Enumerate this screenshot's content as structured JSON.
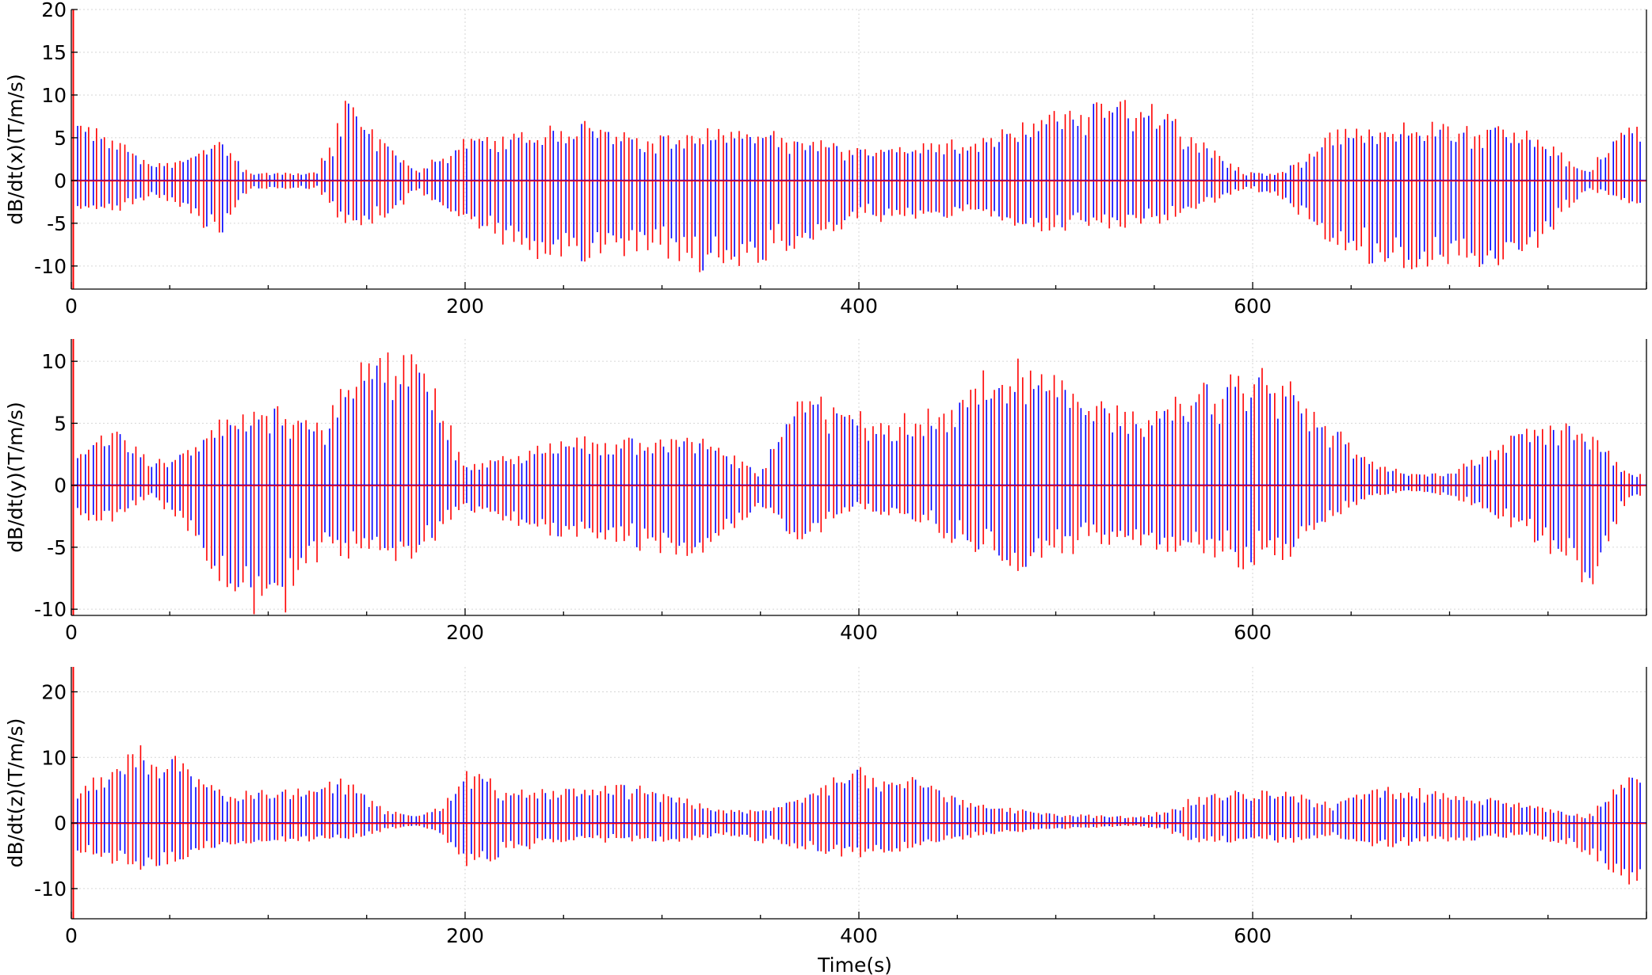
{
  "chart_data": [
    {
      "type": "line",
      "ylabel": "dB/dt(x)(T/m/s)",
      "xlabel": "",
      "xlim": [
        0,
        800
      ],
      "ylim": [
        -12.7,
        20
      ],
      "xticks": [
        0,
        200,
        400,
        600
      ],
      "yticks": [
        -10,
        -5,
        0,
        5,
        10,
        15,
        20
      ],
      "grid": true,
      "colors": {
        "series_a": "#0000ff",
        "series_b": "#ff0000"
      },
      "envelope_keypoints": {
        "x": [
          5,
          20,
          40,
          60,
          75,
          90,
          110,
          125,
          140,
          160,
          175,
          200,
          230,
          260,
          290,
          320,
          350,
          370,
          400,
          430,
          460,
          490,
          520,
          545,
          570,
          595,
          615,
          640,
          680,
          700,
          740,
          770,
          790
        ],
        "positive": [
          7,
          6,
          2,
          3,
          5,
          1,
          1,
          1,
          9.5,
          5,
          1,
          5,
          6,
          7,
          5,
          6.5,
          6,
          5.5,
          4,
          4.5,
          5,
          7.5,
          9.5,
          9.5,
          6,
          1,
          1,
          6,
          7,
          7,
          6,
          1,
          7
        ],
        "negative": [
          -4,
          -4,
          -2,
          -4,
          -7,
          -1,
          -1,
          -1,
          -6,
          -5,
          -1,
          -5,
          -9,
          -10,
          -9,
          -11,
          -10,
          -8,
          -5,
          -5,
          -4,
          -6,
          -6,
          -5.5,
          -4,
          -1,
          -2,
          -9,
          -11,
          -11.5,
          -9,
          -1,
          -3
        ]
      }
    },
    {
      "type": "line",
      "ylabel": "dB/dt(y)(T/m/s)",
      "xlabel": "",
      "xlim": [
        0,
        800
      ],
      "ylim": [
        -10.5,
        11.8
      ],
      "xticks": [
        0,
        200,
        400,
        600
      ],
      "yticks": [
        -10,
        -5,
        0,
        5,
        10
      ],
      "grid": true,
      "colors": {
        "series_a": "#0000ff",
        "series_b": "#ff0000"
      },
      "envelope_keypoints": {
        "x": [
          5,
          20,
          40,
          60,
          75,
          90,
          110,
          125,
          140,
          160,
          175,
          200,
          230,
          260,
          290,
          320,
          350,
          370,
          400,
          430,
          460,
          480,
          520,
          545,
          570,
          600,
          620,
          640,
          660,
          680,
          700,
          740,
          770,
          790
        ],
        "positive": [
          3,
          5,
          2,
          3,
          6,
          6.5,
          6.5,
          5,
          9,
          11.8,
          11.5,
          2,
          3,
          4,
          4,
          4,
          1,
          8,
          6,
          6,
          9,
          11,
          7,
          6,
          8,
          10,
          9,
          5,
          2,
          1,
          1,
          5,
          5,
          1
        ],
        "negative": [
          -3,
          -3,
          -1,
          -4,
          -8,
          -10.5,
          -10.5,
          -6,
          -6,
          -7,
          -6,
          -2,
          -4,
          -4.5,
          -5.5,
          -6,
          -2,
          -5,
          -2,
          -3,
          -6,
          -7,
          -5,
          -5,
          -6,
          -7,
          -6,
          -3,
          -1,
          -0.5,
          -1,
          -4,
          -9,
          -1
        ]
      }
    },
    {
      "type": "line",
      "ylabel": "dB/dt(z)(T/m/s)",
      "xlabel": "Time(s)",
      "xlim": [
        0,
        800
      ],
      "ylim": [
        -14.6,
        23.8
      ],
      "xticks": [
        0,
        200,
        400,
        600
      ],
      "yticks": [
        -10,
        0,
        10,
        20
      ],
      "grid": true,
      "colors": {
        "series_a": "#0000ff",
        "series_b": "#ff0000"
      },
      "envelope_keypoints": {
        "x": [
          5,
          20,
          35,
          55,
          80,
          95,
          120,
          140,
          160,
          175,
          190,
          200,
          220,
          245,
          270,
          290,
          310,
          330,
          350,
          370,
          385,
          400,
          430,
          460,
          500,
          540,
          555,
          570,
          590,
          620,
          640,
          660,
          700,
          740,
          770,
          790
        ],
        "positive": [
          6,
          10,
          12,
          10,
          5,
          5,
          6,
          7,
          2,
          1,
          3,
          9,
          6,
          5,
          6,
          6,
          4,
          2,
          2,
          4,
          7,
          9,
          7,
          3,
          1.5,
          1,
          2,
          4,
          5,
          5,
          3,
          6,
          5,
          3,
          1,
          7
        ],
        "negative": [
          -5,
          -7,
          -7.5,
          -6,
          -4,
          -3,
          -3,
          -3,
          -1,
          -0.5,
          -2,
          -8,
          -5,
          -3,
          -3,
          -3,
          -3,
          -2,
          -3,
          -4,
          -5,
          -5.5,
          -4,
          -2,
          -1,
          -0.5,
          -1,
          -3,
          -3,
          -3,
          -2,
          -4,
          -3,
          -2,
          -5,
          -10
        ]
      }
    }
  ]
}
